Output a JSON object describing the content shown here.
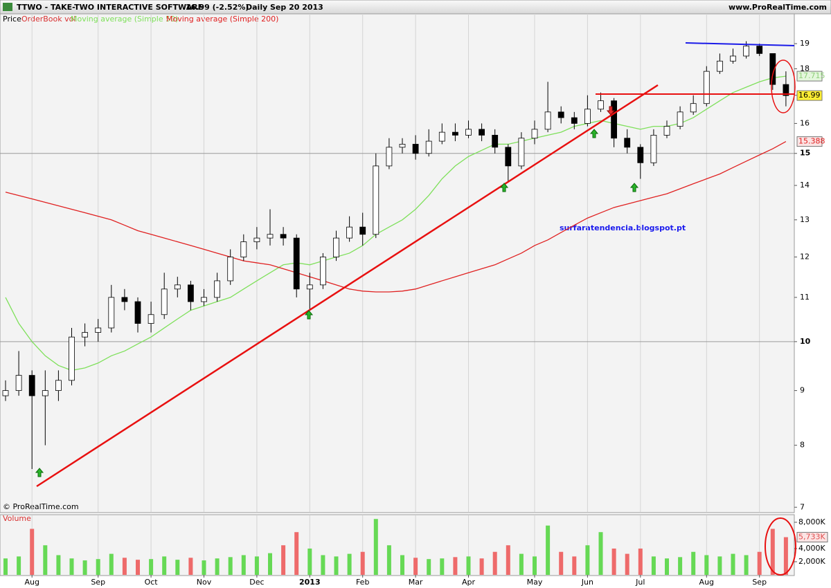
{
  "chart_data": [
    {
      "type": "candlestick",
      "title": "TTWO - TAKE-TWO INTERACTIVE SOFTWARE",
      "last_price_label": "16.99 (-2.52%)",
      "period": "Daily",
      "date": "Sep 20 2013",
      "source": "www.ProRealTime.com",
      "copyright": "© ProRealTime.com",
      "annotation": "surfaratendencia.blogspot.pt",
      "price_name": "Price",
      "orderbook_name": "OrderBook vol",
      "log_scale": true,
      "categories": [
        null,
        null,
        "Aug",
        null,
        null,
        null,
        null,
        "Sep",
        null,
        null,
        null,
        "Oct",
        null,
        null,
        null,
        "Nov",
        null,
        null,
        null,
        "Dec",
        null,
        null,
        null,
        "2013",
        null,
        null,
        null,
        "Feb",
        null,
        null,
        null,
        "Mar",
        null,
        null,
        null,
        "Apr",
        null,
        null,
        null,
        null,
        "May",
        null,
        null,
        null,
        "Jun",
        null,
        null,
        null,
        "Jul",
        null,
        null,
        null,
        null,
        "Aug",
        null,
        null,
        null,
        "Sep",
        null,
        null
      ],
      "open": [
        8.9,
        9.0,
        9.3,
        8.9,
        9.0,
        9.2,
        10.1,
        10.2,
        10.3,
        11.0,
        10.9,
        10.4,
        10.6,
        11.2,
        11.3,
        10.9,
        11.0,
        11.4,
        12.0,
        12.4,
        12.5,
        12.6,
        12.5,
        11.2,
        11.3,
        12.0,
        12.5,
        12.8,
        12.6,
        14.6,
        15.2,
        15.3,
        15.0,
        15.4,
        15.7,
        15.6,
        15.8,
        15.6,
        15.2,
        14.6,
        15.5,
        15.8,
        16.4,
        16.2,
        16.0,
        16.5,
        16.8,
        15.5,
        15.2,
        14.7,
        15.6,
        15.9,
        16.4,
        16.7,
        17.9,
        18.3,
        18.5,
        18.9,
        18.6,
        17.4
      ],
      "high": [
        9.2,
        9.8,
        9.4,
        9.4,
        9.4,
        10.3,
        10.4,
        10.5,
        11.3,
        11.2,
        11.0,
        10.9,
        11.6,
        11.5,
        11.4,
        11.2,
        11.6,
        12.2,
        12.6,
        12.8,
        13.3,
        12.8,
        12.6,
        11.6,
        12.1,
        12.7,
        13.1,
        13.2,
        15.0,
        15.5,
        15.5,
        15.6,
        15.8,
        16.0,
        16.0,
        16.1,
        16.0,
        15.8,
        15.3,
        15.7,
        16.1,
        17.5,
        16.6,
        16.4,
        17.0,
        17.1,
        16.9,
        15.8,
        15.3,
        15.8,
        16.1,
        16.6,
        17.0,
        18.1,
        18.6,
        18.8,
        19.1,
        19.0,
        18.6,
        17.9
      ],
      "low": [
        8.8,
        8.9,
        7.6,
        8.0,
        8.8,
        9.1,
        9.9,
        10.0,
        10.2,
        10.7,
        10.2,
        10.2,
        10.5,
        11.0,
        10.7,
        10.8,
        10.9,
        11.3,
        11.9,
        12.2,
        12.3,
        12.3,
        11.0,
        10.7,
        11.2,
        11.9,
        12.4,
        12.3,
        12.5,
        14.5,
        15.0,
        14.8,
        14.9,
        15.3,
        15.4,
        15.5,
        15.4,
        15.0,
        14.1,
        14.5,
        15.3,
        15.7,
        16.0,
        15.8,
        15.9,
        16.4,
        15.2,
        15.0,
        14.2,
        14.6,
        15.5,
        15.8,
        16.3,
        16.6,
        17.8,
        18.2,
        18.4,
        18.5,
        17.2,
        16.6
      ],
      "close": [
        9.0,
        9.3,
        8.9,
        9.0,
        9.2,
        10.1,
        10.2,
        10.3,
        11.0,
        10.9,
        10.4,
        10.6,
        11.2,
        11.3,
        10.9,
        11.0,
        11.4,
        12.0,
        12.4,
        12.5,
        12.6,
        12.5,
        11.2,
        11.3,
        12.0,
        12.5,
        12.8,
        12.6,
        14.6,
        15.2,
        15.3,
        15.0,
        15.4,
        15.7,
        15.6,
        15.8,
        15.6,
        15.2,
        14.6,
        15.5,
        15.8,
        16.4,
        16.2,
        16.0,
        16.5,
        16.8,
        15.5,
        15.2,
        14.7,
        15.6,
        15.9,
        16.4,
        16.7,
        17.9,
        18.3,
        18.5,
        18.9,
        18.6,
        17.4,
        16.99
      ],
      "series": [
        {
          "name": "Moving average (Simple 50)",
          "color": "#7ee05a",
          "values": [
            11.0,
            10.4,
            10.0,
            9.7,
            9.5,
            9.4,
            9.45,
            9.55,
            9.7,
            9.8,
            9.95,
            10.1,
            10.3,
            10.5,
            10.7,
            10.8,
            10.9,
            11.0,
            11.2,
            11.4,
            11.6,
            11.8,
            11.85,
            11.8,
            11.9,
            12.0,
            12.1,
            12.3,
            12.6,
            12.8,
            13.0,
            13.3,
            13.7,
            14.2,
            14.6,
            14.9,
            15.1,
            15.3,
            15.3,
            15.4,
            15.5,
            15.6,
            15.7,
            15.9,
            16.0,
            16.1,
            16.0,
            15.9,
            15.8,
            15.9,
            15.9,
            16.0,
            16.2,
            16.5,
            16.8,
            17.1,
            17.3,
            17.5,
            17.65,
            17.715
          ]
        },
        {
          "name": "Moving average (Simple 200)",
          "color": "#e02020",
          "values": [
            13.8,
            13.7,
            13.6,
            13.5,
            13.4,
            13.3,
            13.2,
            13.1,
            13.0,
            12.85,
            12.7,
            12.6,
            12.5,
            12.4,
            12.3,
            12.2,
            12.1,
            12.0,
            11.9,
            11.85,
            11.8,
            11.7,
            11.6,
            11.5,
            11.4,
            11.3,
            11.2,
            11.15,
            11.13,
            11.13,
            11.15,
            11.2,
            11.3,
            11.4,
            11.5,
            11.6,
            11.7,
            11.8,
            11.95,
            12.1,
            12.3,
            12.45,
            12.65,
            12.85,
            13.05,
            13.2,
            13.35,
            13.45,
            13.55,
            13.65,
            13.75,
            13.9,
            14.05,
            14.2,
            14.35,
            14.55,
            14.75,
            14.95,
            15.15,
            15.388
          ]
        }
      ],
      "ylim": [
        6.93,
        20.26
      ],
      "yticks": [
        7,
        8,
        9,
        10,
        11,
        12,
        13,
        14,
        15,
        16,
        17,
        18,
        19
      ],
      "bold_yticks": [
        10,
        15
      ],
      "grid": true
    },
    {
      "type": "volume",
      "title": "Volume",
      "values": [
        2500,
        2800,
        7000,
        4500,
        3000,
        2500,
        2200,
        2400,
        3200,
        2600,
        2300,
        2400,
        2800,
        2300,
        2600,
        2200,
        2500,
        2700,
        3000,
        2800,
        3300,
        4500,
        6500,
        4000,
        3000,
        2800,
        3200,
        3500,
        8500,
        4500,
        3000,
        2600,
        2400,
        2500,
        2700,
        2800,
        2500,
        3500,
        4500,
        3200,
        2800,
        7500,
        3500,
        2800,
        4500,
        6500,
        4000,
        3200,
        4000,
        2800,
        2500,
        2700,
        3500,
        3000,
        2800,
        3200,
        3000,
        3500,
        7000,
        5733
      ],
      "last_label": "5,733K",
      "up_color": "#66d955",
      "down_color": "#ee6a6a",
      "ylim": [
        0,
        9050
      ],
      "yticks": [
        {
          "value": 2000,
          "label": "2,000K"
        },
        {
          "value": 4000,
          "label": "4,000K"
        },
        {
          "value": 8000,
          "label": "8,000K"
        }
      ]
    }
  ]
}
